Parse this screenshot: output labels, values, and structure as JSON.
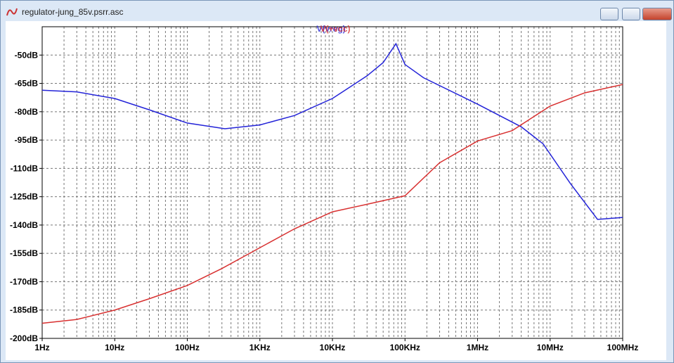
{
  "window": {
    "title": "regulator-jung_85v.psrr.asc"
  },
  "chart_data": {
    "type": "line",
    "x_scale": "log",
    "grid": true,
    "minor_grid": true,
    "xlim": [
      1,
      100000000
    ],
    "xticks": [
      {
        "value": 1,
        "label": "1Hz"
      },
      {
        "value": 10,
        "label": "10Hz"
      },
      {
        "value": 100,
        "label": "100Hz"
      },
      {
        "value": 1000,
        "label": "1KHz"
      },
      {
        "value": 10000,
        "label": "10KHz"
      },
      {
        "value": 100000,
        "label": "100KHz"
      },
      {
        "value": 1000000,
        "label": "1MHz"
      },
      {
        "value": 10000000,
        "label": "10MHz"
      },
      {
        "value": 100000000,
        "label": "100MHz"
      }
    ],
    "ylim": [
      -200,
      -35
    ],
    "yticks": [
      {
        "value": -50,
        "label": "-50dB"
      },
      {
        "value": -65,
        "label": "-65dB"
      },
      {
        "value": -80,
        "label": "-80dB"
      },
      {
        "value": -95,
        "label": "-95dB"
      },
      {
        "value": -110,
        "label": "-110dB"
      },
      {
        "value": -125,
        "label": "-125dB"
      },
      {
        "value": -140,
        "label": "-140dB"
      },
      {
        "value": -155,
        "label": "-155dB"
      },
      {
        "value": -170,
        "label": "-170dB"
      },
      {
        "value": -185,
        "label": "-185dB"
      },
      {
        "value": -200,
        "label": "-200dB"
      }
    ],
    "series": [
      {
        "name": "V(vreg)",
        "color": "#2323d8",
        "x": [
          1,
          3,
          10,
          30,
          100,
          330,
          1000,
          3000,
          10000,
          30000,
          50000,
          75000,
          100000,
          180000,
          1000000,
          4000000,
          8000000,
          19000000,
          45000000,
          100000000
        ],
        "values": [
          -68.6,
          -69.5,
          -73,
          -79,
          -86,
          -89,
          -87,
          -82,
          -73,
          -61,
          -54,
          -44,
          -55,
          -62,
          -76,
          -88,
          -97,
          -118,
          -137,
          -136
        ]
      },
      {
        "name": "V(+vcc)",
        "color": "#d83030",
        "x": [
          1,
          3,
          10,
          30,
          100,
          300,
          1000,
          3000,
          10000,
          30000,
          100000,
          300000,
          1000000,
          3000000,
          10000000,
          30000000,
          100000000
        ],
        "values": [
          -192,
          -190,
          -185,
          -179,
          -172,
          -163,
          -152,
          -142,
          -133,
          -129,
          -124.5,
          -107,
          -95.5,
          -90,
          -77,
          -70,
          -65.6
        ]
      }
    ]
  }
}
